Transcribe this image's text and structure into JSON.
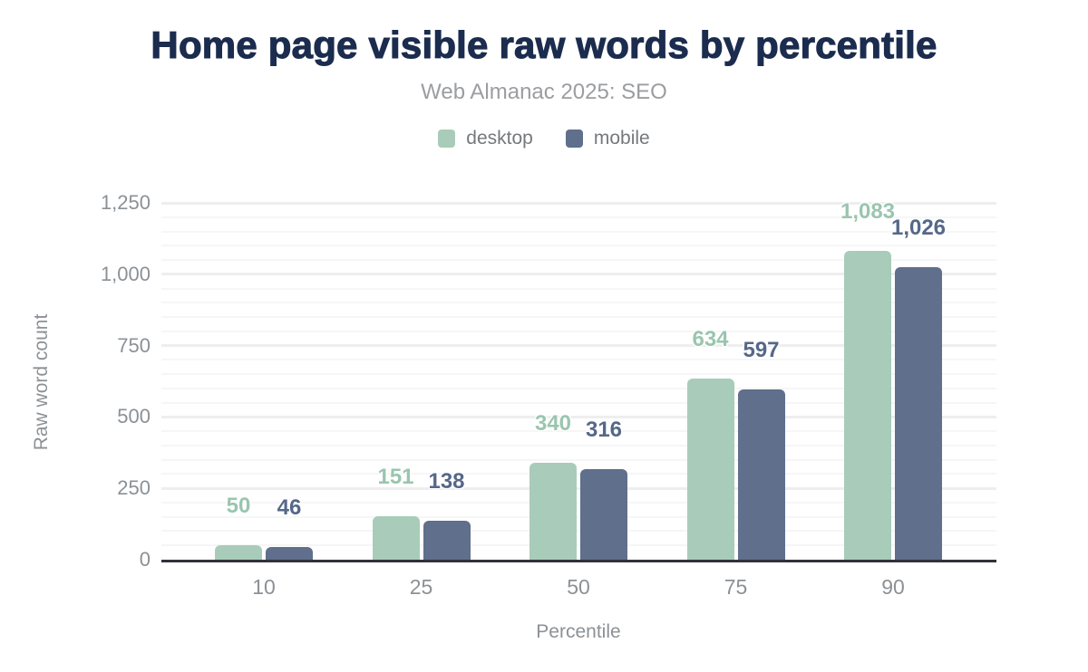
{
  "chart_data": {
    "type": "bar",
    "title": "Home page visible raw words by percentile",
    "subtitle": "Web Almanac 2025: SEO",
    "xlabel": "Percentile",
    "ylabel": "Raw word count",
    "categories": [
      "10",
      "25",
      "50",
      "75",
      "90"
    ],
    "series": [
      {
        "name": "desktop",
        "color": "#a8ccb9",
        "label_color": "#9ac5af",
        "values": [
          50,
          151,
          340,
          634,
          1083
        ]
      },
      {
        "name": "mobile",
        "color": "#5f6f8c",
        "label_color": "#556888",
        "values": [
          46,
          138,
          316,
          597,
          1026
        ]
      }
    ],
    "ylim": [
      0,
      1250
    ],
    "y_tick_step": 250,
    "y_minor_step": 50,
    "y_tick_labels": [
      "0",
      "250",
      "500",
      "750",
      "1,000",
      "1,250"
    ],
    "grid": "on",
    "legend_position": "top"
  },
  "theme": {
    "title_color": "#1b2c4e",
    "subtitle_color": "#9b9da0",
    "legend_text_color": "#75797c",
    "axis_text_color": "#8c9196",
    "axis_line_color": "#32323a",
    "background": "#ffffff"
  }
}
